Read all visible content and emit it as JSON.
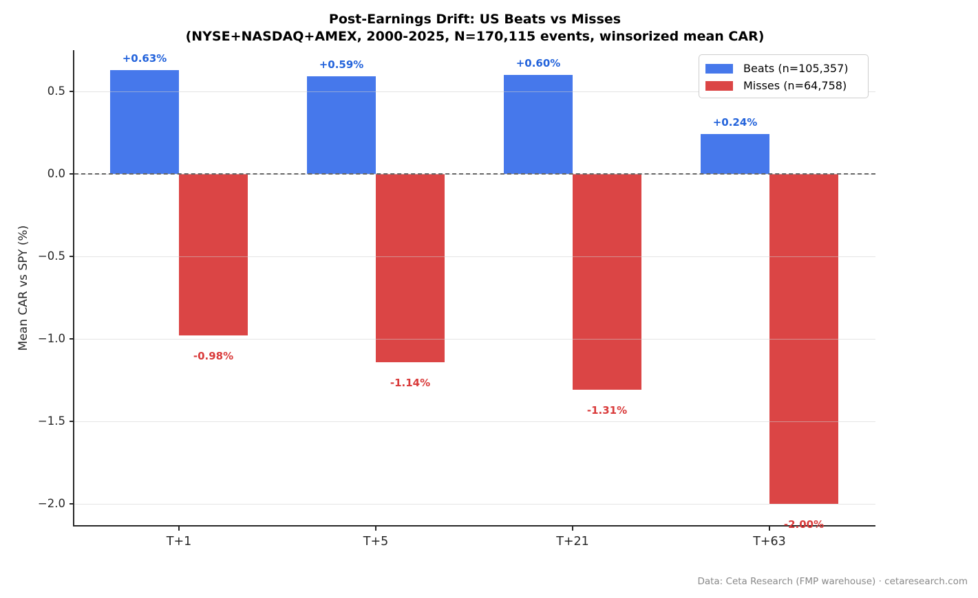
{
  "title": {
    "line1": "Post-Earnings Drift: US Beats vs Misses",
    "line2": "(NYSE+NASDAQ+AMEX, 2000-2025, N=170,115 events, winsorized mean CAR)"
  },
  "footer": "Data: Ceta Research (FMP warehouse) · cetaresearch.com",
  "chart_data": {
    "type": "bar",
    "categories": [
      "T+1",
      "T+5",
      "T+21",
      "T+63"
    ],
    "series": [
      {
        "name": "Beats (n=105,357)",
        "color": "#4678EB",
        "label_color": "#2363DB",
        "values": [
          0.63,
          0.59,
          0.6,
          0.24
        ],
        "labels": [
          "+0.63%",
          "+0.59%",
          "+0.60%",
          "+0.24%"
        ]
      },
      {
        "name": "Misses (n=64,758)",
        "color": "#DB4545",
        "label_color": "#D93A3A",
        "values": [
          -0.98,
          -1.14,
          -1.31,
          -2.0
        ],
        "labels": [
          "-0.98%",
          "-1.14%",
          "-1.31%",
          "-2.00%"
        ]
      }
    ],
    "ylabel": "Mean CAR vs SPY (%)",
    "yticks": [
      0.5,
      0.0,
      -0.5,
      -1.0,
      -1.5,
      -2.0
    ],
    "ytick_labels": [
      "0.5",
      "0.0",
      "−0.5",
      "−1.0",
      "−1.5",
      "−2.0"
    ],
    "ylim": [
      -2.1333,
      0.75
    ],
    "grid": true,
    "zero_line": "dashed",
    "legend_position": "upper right"
  }
}
